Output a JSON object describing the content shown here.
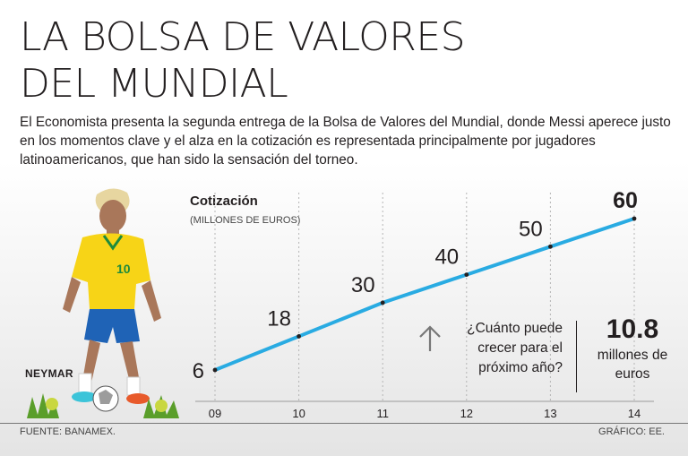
{
  "title": {
    "line1": "LA BOLSA DE VALORES",
    "line2": "DEL MUNDIAL"
  },
  "intro": "El Economista presenta la segunda entrega de la Bolsa de Valores del Mundial, donde Messi aperece justo en los momentos clave y el alza en la cotización es representada principalmente por jugadores latinoamericanos, que han sido la sensación del torneo.",
  "player": {
    "name": "NEYMAR"
  },
  "callout": {
    "question": "¿Cuánto puede crecer para el próximo año?",
    "value": "10.8",
    "unit": "millones de euros",
    "icon": "arrow-up-icon"
  },
  "footer": {
    "source": "FUENTE: BANAMEX.",
    "credit": "GRÁFICO: EE."
  },
  "colors": {
    "line": "#29abe2",
    "text": "#231f20",
    "jersey": "#f7d417",
    "shorts": "#1f63b6"
  },
  "chart_data": {
    "type": "line",
    "title": "Cotización",
    "subtitle": "(MILLONES DE EUROS)",
    "xlabel": "",
    "ylabel": "",
    "categories": [
      "09",
      "10",
      "11",
      "12",
      "13",
      "14"
    ],
    "series": [
      {
        "values": [
          6,
          18,
          30,
          40,
          50,
          60
        ]
      }
    ],
    "value_labels": [
      "6",
      "18",
      "30",
      "40",
      "50",
      "60"
    ],
    "ylim": [
      0,
      62
    ],
    "grid": "vertical",
    "legend": "none"
  }
}
